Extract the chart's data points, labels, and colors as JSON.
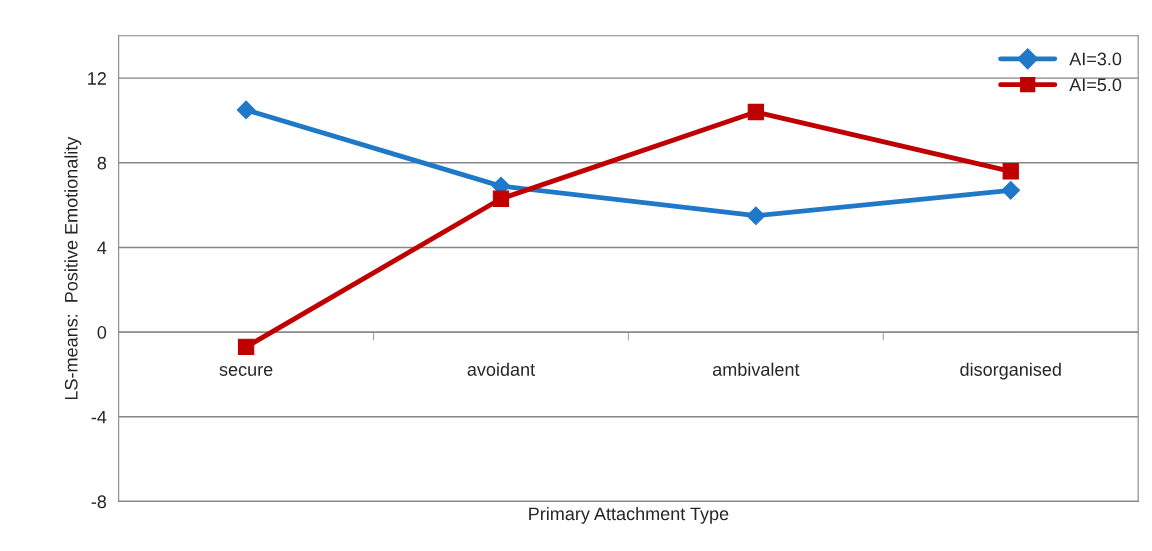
{
  "chart_data": {
    "type": "line",
    "xlabel": "Primary Attachment Type",
    "ylabel": "LS-means:  Positive Emotionality",
    "categories": [
      "secure",
      "avoidant",
      "ambivalent",
      "disorganised"
    ],
    "series": [
      {
        "name": "AI=3.0",
        "color": "#1f78c8",
        "marker": "diamond",
        "values": [
          10.5,
          6.9,
          5.5,
          6.7
        ]
      },
      {
        "name": "AI=5.0",
        "color": "#c00000",
        "marker": "square",
        "values": [
          -0.7,
          6.3,
          10.4,
          7.6
        ]
      }
    ],
    "ylim": [
      -8,
      14
    ],
    "yticks": [
      -8,
      -4,
      0,
      4,
      8,
      12
    ],
    "grid": "y",
    "legend": "top right",
    "line_style": "solid"
  }
}
